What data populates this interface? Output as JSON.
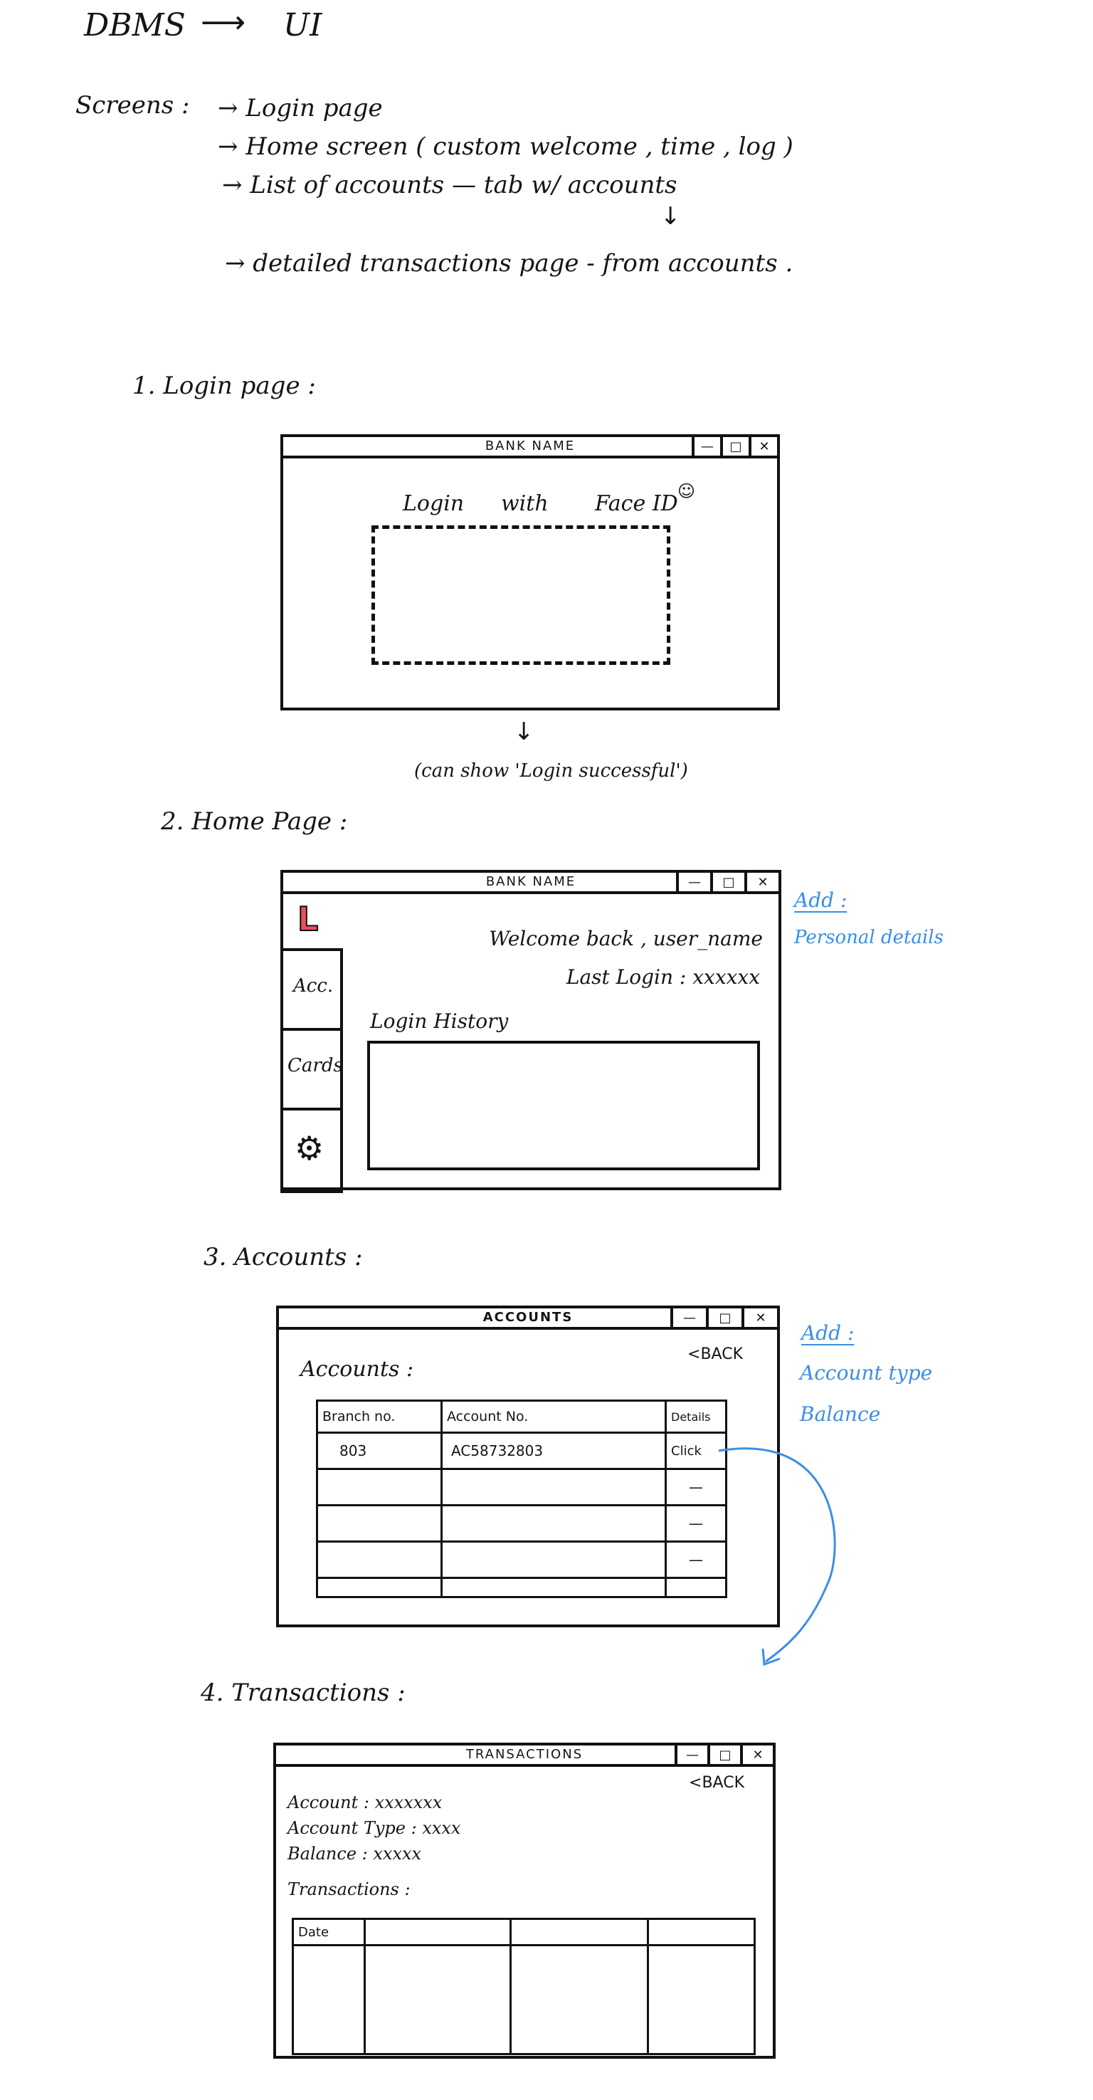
{
  "heading": {
    "left": "DBMS",
    "arrow": "⟶",
    "right": "UI"
  },
  "screens": {
    "label": "Screens :",
    "items": [
      "→ Login page",
      "→ Home screen  ( custom  welcome ,  time ,  log )",
      "→ List of accounts  —  tab  w/  accounts",
      "→ detailed transactions  page  - from accounts ."
    ],
    "down_arrow": "↓"
  },
  "sections": {
    "login": "1.  Login page :",
    "home": "2.  Home  Page :",
    "accounts": "3. Accounts :",
    "transactions": "4. Transactions :"
  },
  "window_buttons": {
    "minimize": "—",
    "maximize": "□",
    "close": "✕"
  },
  "login_window": {
    "title": "BANK NAME",
    "login": "Login",
    "with": "with",
    "faceid": "Face ID",
    "face_badge": "☺",
    "note_arrow": "↓",
    "note": "(can show 'Login successful')"
  },
  "home_window": {
    "title": "BANK NAME",
    "logo": "L",
    "tabs": [
      "Acc.",
      "Cards"
    ],
    "settings_icon": "⚙",
    "welcome": "Welcome back , user_name",
    "last_login": "Last  Login : xxxxxx",
    "history_label": "Login History",
    "note_add": "Add :",
    "note_detail": "Personal details"
  },
  "accounts_window": {
    "title": "ACCOUNTS",
    "back": "<BACK",
    "label": "Accounts :",
    "columns": [
      "Branch no.",
      "Account No.",
      "Details"
    ],
    "rows": [
      [
        "803",
        "AC58732803",
        "Click"
      ],
      [
        "",
        "",
        "—"
      ],
      [
        "",
        "",
        "—"
      ],
      [
        "",
        "",
        "—"
      ],
      [
        "",
        "",
        ""
      ]
    ],
    "note_add": "Add :",
    "note_items": [
      "Account type",
      "Balance"
    ]
  },
  "transactions_window": {
    "title": "TRANSACTIONS",
    "back": "<BACK",
    "account": "Account : xxxxxxx",
    "account_type": "Account Type : xxxx",
    "balance": "Balance : xxxxx",
    "label": "Transactions :",
    "columns": [
      "Date",
      "",
      "",
      ""
    ]
  },
  "colors": {
    "ink": "#151515",
    "blue_note": "#3a8ee6",
    "logo_red": "#e8505b"
  }
}
